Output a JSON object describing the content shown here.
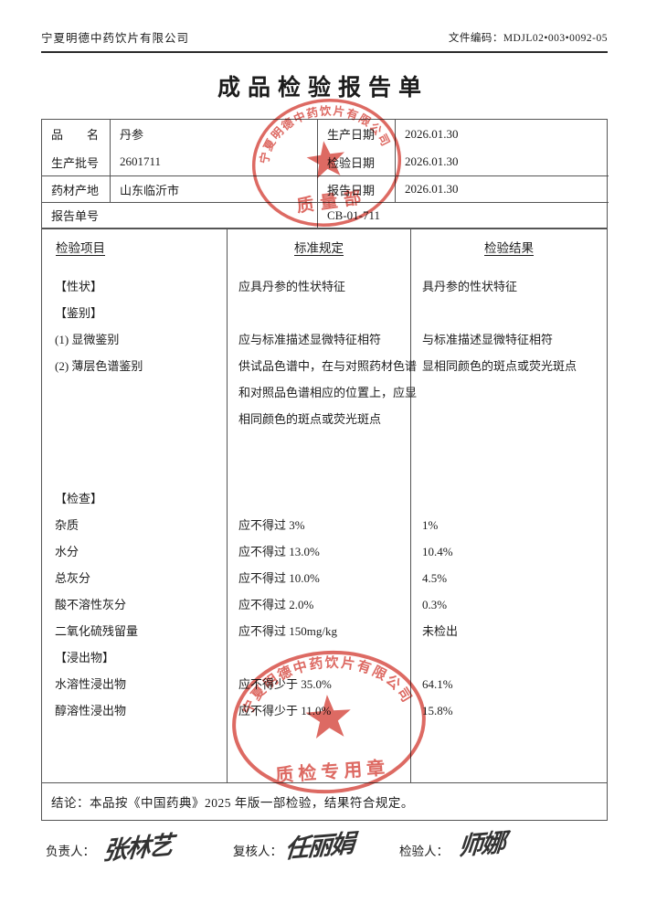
{
  "header": {
    "company": "宁夏明德中药饮片有限公司",
    "doc_code_label": "文件编码：",
    "doc_code": "MDJL02•003•0092-05"
  },
  "title": "成品检验报告单",
  "info": {
    "rows": [
      {
        "label": "品　　名",
        "value": "丹参",
        "label2": "生产日期",
        "value2": "2026.01.30"
      },
      {
        "label": "生产批号",
        "value": "2601711",
        "label2": "检验日期",
        "value2": "2026.01.30"
      },
      {
        "label": "药材产地",
        "value": "山东临沂市",
        "label2": "报告日期",
        "value2": "2026.01.30"
      }
    ],
    "report_no_label": "报告单号",
    "report_no": "CB-01-711"
  },
  "table": {
    "headers": [
      "检验项目",
      "标准规定",
      "检验结果"
    ],
    "lines": [
      {
        "item": "【性状】",
        "standard": "应具丹参的性状特征",
        "result": "具丹参的性状特征"
      },
      {
        "item": "【鉴别】",
        "standard": "",
        "result": ""
      },
      {
        "item": "(1) 显微鉴别",
        "standard": "应与标准描述显微特征相符",
        "result": "与标准描述显微特征相符"
      },
      {
        "item": "(2) 薄层色谱鉴别",
        "standard": "供试品色谱中，在与对照药材色谱",
        "result": "显相同颜色的斑点或荧光斑点"
      },
      {
        "item": "",
        "standard": "和对照品色谱相应的位置上，应显",
        "result": ""
      },
      {
        "item": "",
        "standard": "相同颜色的斑点或荧光斑点",
        "result": ""
      },
      {
        "item": "",
        "standard": "",
        "result": ""
      },
      {
        "item": "",
        "standard": "",
        "result": ""
      },
      {
        "item": "【检查】",
        "standard": "",
        "result": ""
      },
      {
        "item": "杂质",
        "standard": "应不得过 3%",
        "result": "1%"
      },
      {
        "item": "水分",
        "standard": "应不得过 13.0%",
        "result": "10.4%"
      },
      {
        "item": "总灰分",
        "standard": "应不得过 10.0%",
        "result": "4.5%"
      },
      {
        "item": "酸不溶性灰分",
        "standard": "应不得过 2.0%",
        "result": "0.3%"
      },
      {
        "item": "二氧化硫残留量",
        "standard": "应不得过 150mg/kg",
        "result": "未检出"
      },
      {
        "item": "【浸出物】",
        "standard": "",
        "result": ""
      },
      {
        "item": "水溶性浸出物",
        "standard": "应不得少于 35.0%",
        "result": "64.1%"
      },
      {
        "item": "醇溶性浸出物",
        "standard": "应不得少于 11.0%",
        "result": "15.8%"
      }
    ]
  },
  "conclusion": "结论：本品按《中国药典》2025 年版一部检验，结果符合规定。",
  "signatures": {
    "leader_label": "负责人：",
    "leader": "张林艺",
    "reviewer_label": "复核人：",
    "reviewer": "任丽娟",
    "inspector_label": "检验人：",
    "inspector": "师娜"
  },
  "stamps": {
    "quality_dept": {
      "company": "宁夏明德中药饮片有限公司",
      "title": "质量部"
    },
    "qc_seal": {
      "company": "宁夏明德中药饮片有限公司",
      "title": "质检专用章"
    }
  },
  "colors": {
    "stamp_red": "#d5443b",
    "text": "#1c1c1c",
    "line": "#555555"
  }
}
